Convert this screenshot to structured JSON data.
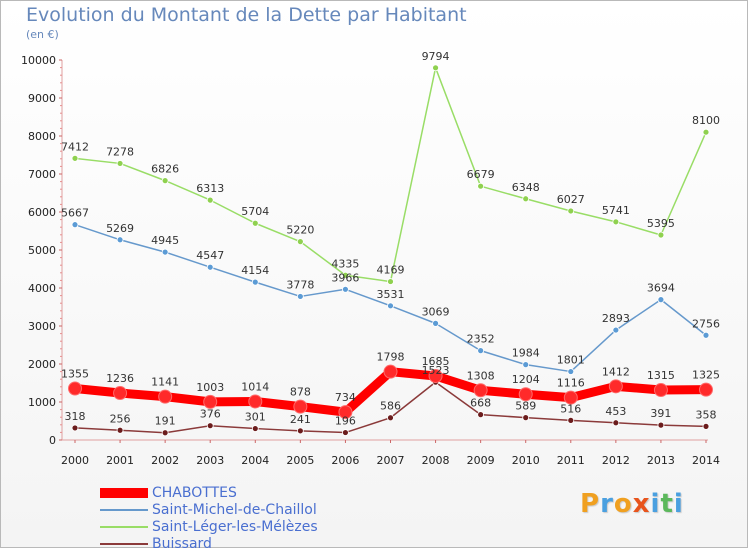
{
  "header": {
    "title": "Evolution du Montant de la Dette par Habitant",
    "subtitle": "(en €)"
  },
  "logo": {
    "text": "Proxiti",
    "colors": [
      "#f0a020",
      "#4aa0e0",
      "#f0a020",
      "#e8541c",
      "#4aa0e0",
      "#5cb85c",
      "#4aa0e0"
    ]
  },
  "chart_data": {
    "type": "line",
    "title": "Evolution du Montant de la Dette par Habitant",
    "subtitle": "(en €)",
    "xlabel": "",
    "ylabel": "",
    "categories": [
      "2000",
      "2001",
      "2002",
      "2003",
      "2004",
      "2005",
      "2006",
      "2007",
      "2008",
      "2009",
      "2010",
      "2011",
      "2012",
      "2013",
      "2014"
    ],
    "ylim": [
      0,
      10000
    ],
    "yticks": [
      0,
      1000,
      2000,
      3000,
      4000,
      5000,
      6000,
      7000,
      8000,
      9000,
      10000
    ],
    "grid": false,
    "legend_position": "bottom-left",
    "series": [
      {
        "name": "CHABOTTES",
        "color": "#ff0000",
        "markerColor": "#ff2a2a",
        "width": 9,
        "values": [
          1355,
          1236,
          1141,
          1003,
          1014,
          878,
          734,
          1798,
          1685,
          1308,
          1204,
          1116,
          1412,
          1315,
          1325
        ]
      },
      {
        "name": "Saint-Michel-de-Chaillol",
        "color": "#6699cc",
        "markerColor": "#5b9bd5",
        "width": 1.5,
        "values": [
          5667,
          5269,
          4945,
          4547,
          4154,
          3778,
          3966,
          3531,
          3069,
          2352,
          1984,
          1801,
          2893,
          3694,
          2756
        ]
      },
      {
        "name": "Saint-Léger-les-Mélèzes",
        "color": "#99dd66",
        "markerColor": "#8fd14f",
        "width": 1.5,
        "values": [
          7412,
          7278,
          6826,
          6313,
          5704,
          5220,
          4335,
          4169,
          9794,
          6679,
          6348,
          6027,
          5741,
          5395,
          8100
        ]
      },
      {
        "name": "Buissard",
        "color": "#8b3a3a",
        "markerColor": "#6b1c1c",
        "width": 1.5,
        "values": [
          318,
          256,
          191,
          376,
          301,
          241,
          196,
          586,
          1523,
          668,
          589,
          516,
          453,
          391,
          358
        ]
      }
    ]
  }
}
